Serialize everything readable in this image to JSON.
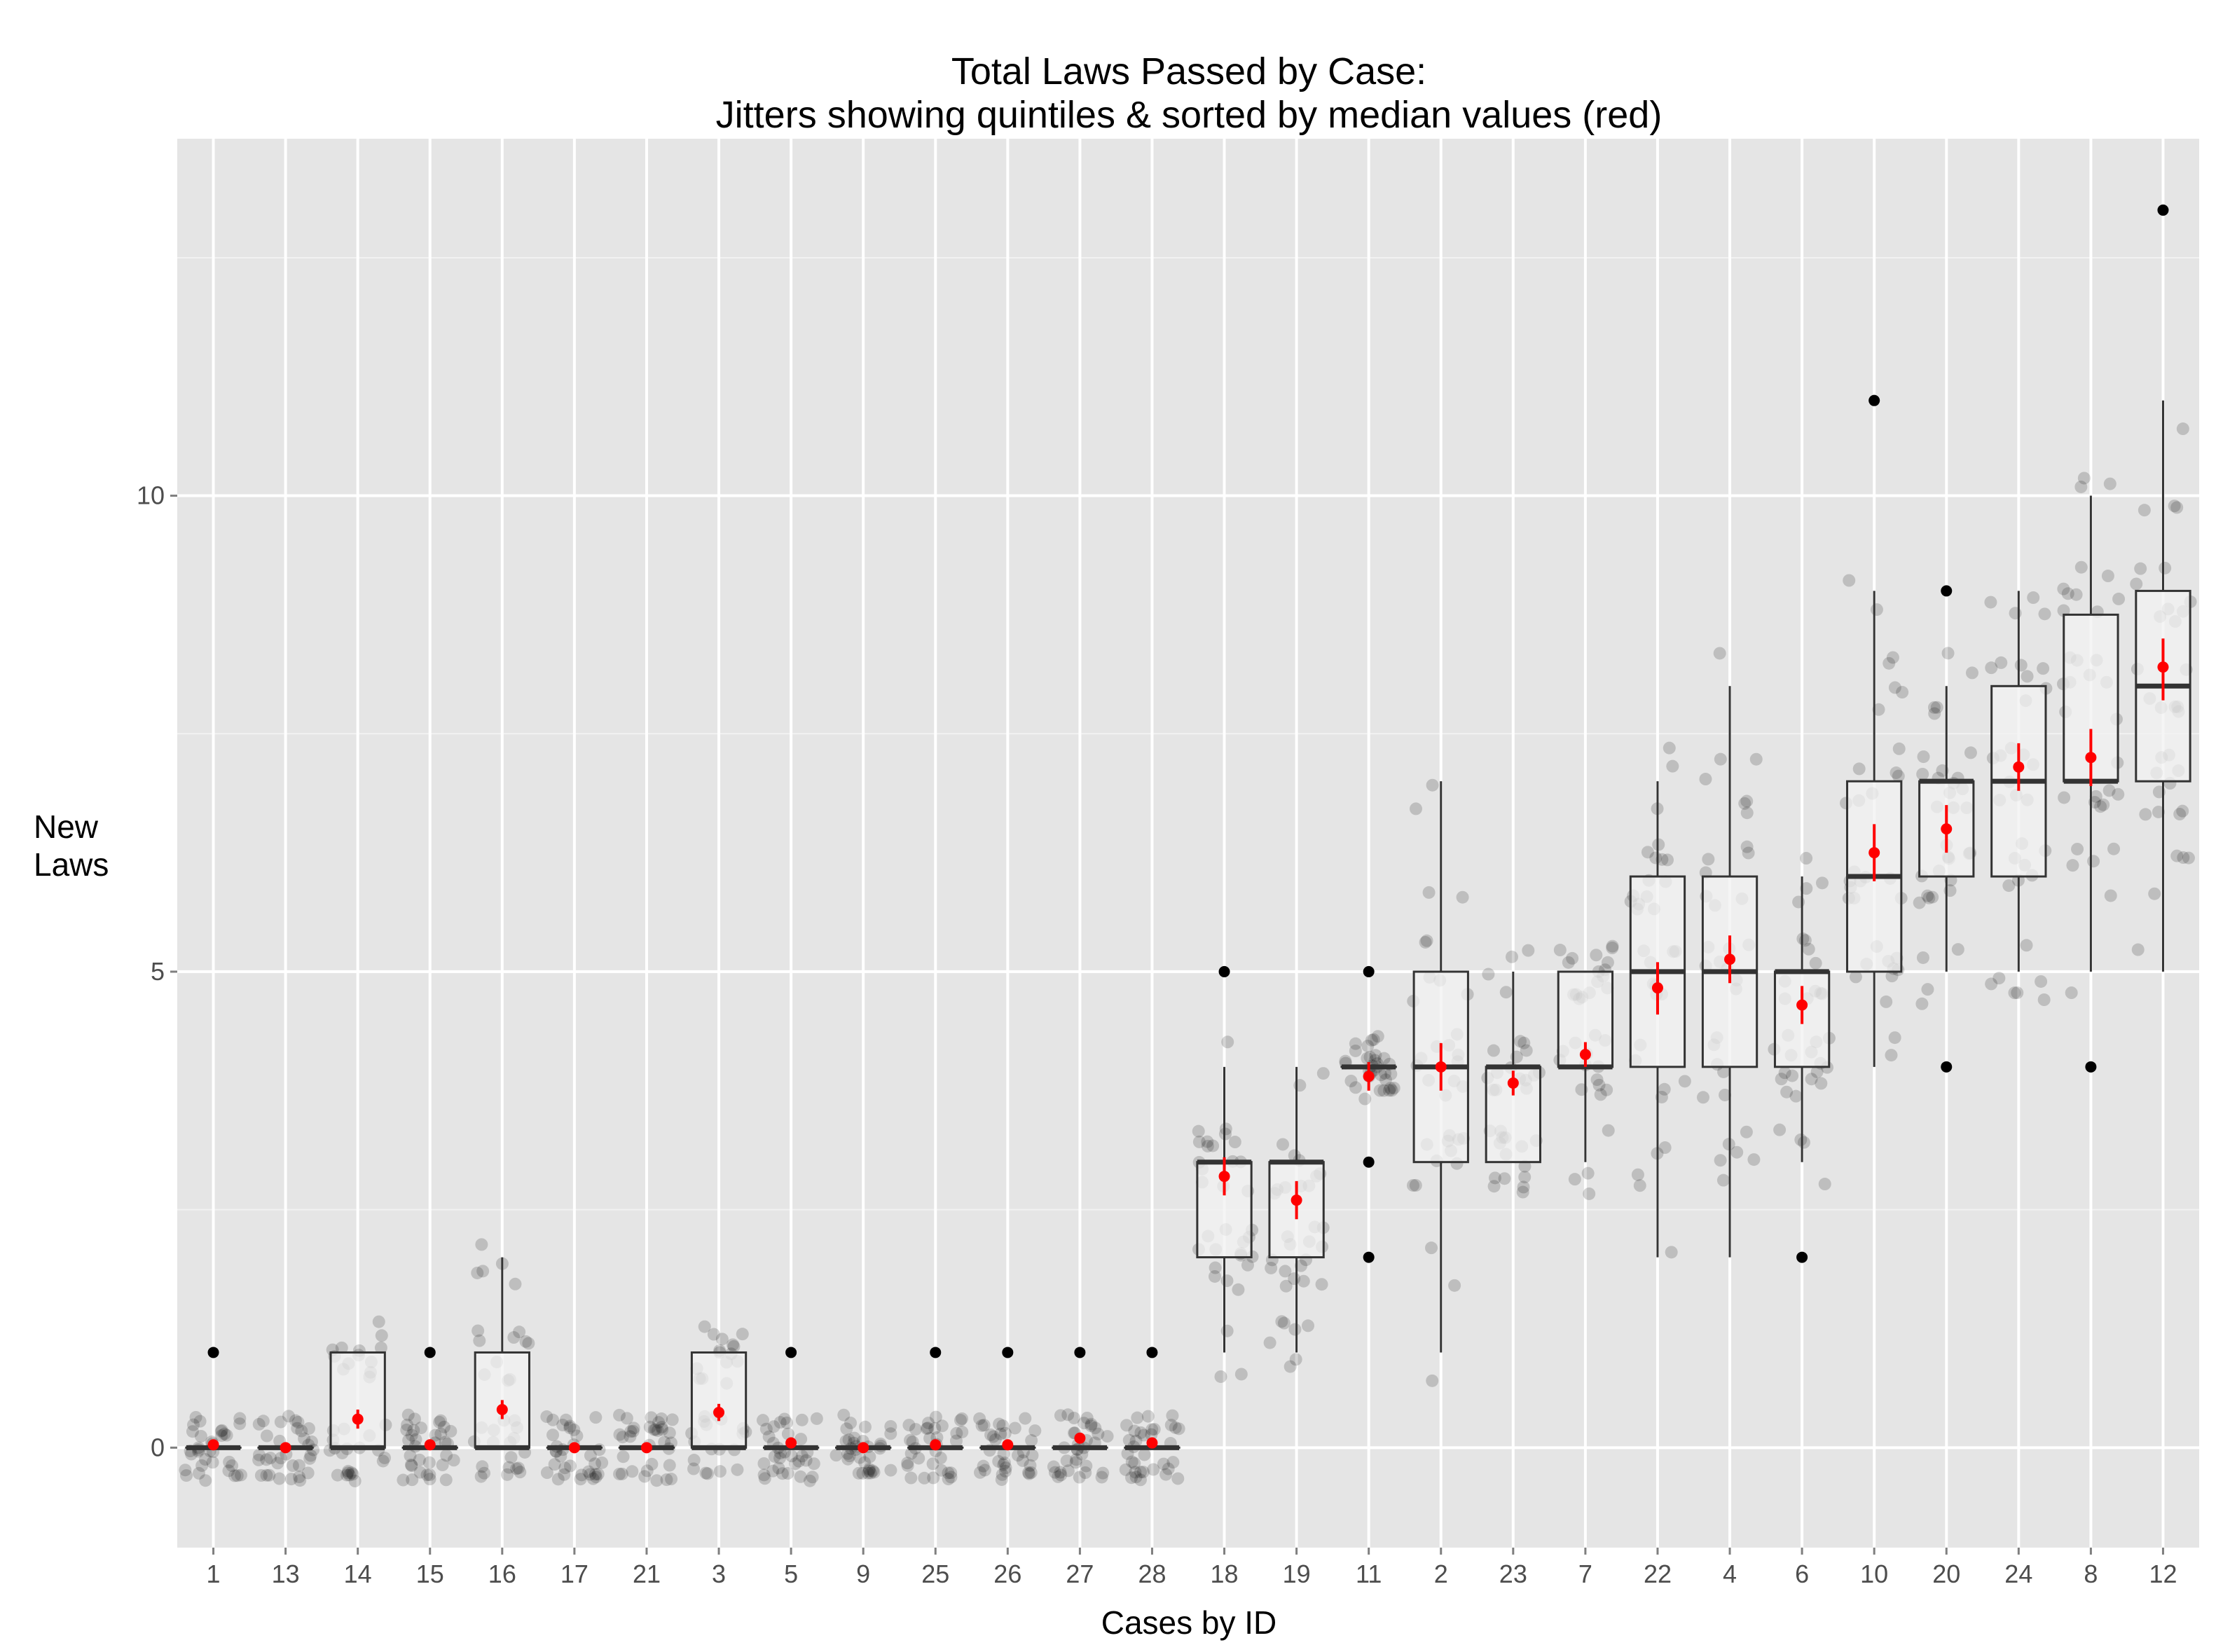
{
  "chart_data": {
    "type": "box",
    "title_line1": "Total Laws Passed by Case:",
    "title_line2": "Jitters showing quintiles & sorted by median values (red)",
    "xlabel": "Cases by ID",
    "ylabel_line1": "New",
    "ylabel_line2": "Laws",
    "ylim": [
      -1.05,
      13.75
    ],
    "yticks": [
      0,
      5,
      10
    ],
    "grid": true,
    "colors": {
      "panel": "#e5e5e5",
      "grid": "#ffffff",
      "box_fill": "#f2f2f2",
      "box_line": "#333333",
      "jitter": "#000000",
      "mean": "#ff0000",
      "outlier": "#000000"
    },
    "categories": [
      "1",
      "13",
      "14",
      "15",
      "16",
      "17",
      "21",
      "3",
      "5",
      "9",
      "25",
      "26",
      "27",
      "28",
      "18",
      "19",
      "11",
      "2",
      "23",
      "7",
      "22",
      "4",
      "6",
      "10",
      "20",
      "24",
      "8",
      "12"
    ],
    "boxes": [
      {
        "q1": 0,
        "median": 0,
        "q3": 0,
        "whisker_low": 0,
        "whisker_high": 0,
        "mean": 0.03,
        "ci": [
          0.0,
          0.06
        ],
        "outliers": [
          1
        ]
      },
      {
        "q1": 0,
        "median": 0,
        "q3": 0,
        "whisker_low": 0,
        "whisker_high": 0,
        "mean": 0,
        "ci": [
          0,
          0
        ],
        "outliers": []
      },
      {
        "q1": 0,
        "median": 0,
        "q3": 1,
        "whisker_low": 0,
        "whisker_high": 1,
        "mean": 0.3,
        "ci": [
          0.2,
          0.4
        ],
        "outliers": []
      },
      {
        "q1": 0,
        "median": 0,
        "q3": 0,
        "whisker_low": 0,
        "whisker_high": 0,
        "mean": 0.03,
        "ci": [
          0.0,
          0.06
        ],
        "outliers": [
          1
        ]
      },
      {
        "q1": 0,
        "median": 0,
        "q3": 1,
        "whisker_low": 0,
        "whisker_high": 2,
        "mean": 0.4,
        "ci": [
          0.3,
          0.5
        ],
        "outliers": []
      },
      {
        "q1": 0,
        "median": 0,
        "q3": 0,
        "whisker_low": 0,
        "whisker_high": 0,
        "mean": 0,
        "ci": [
          0,
          0
        ],
        "outliers": []
      },
      {
        "q1": 0,
        "median": 0,
        "q3": 0,
        "whisker_low": 0,
        "whisker_high": 0,
        "mean": 0,
        "ci": [
          0,
          0
        ],
        "outliers": []
      },
      {
        "q1": 0,
        "median": 0,
        "q3": 1,
        "whisker_low": 0,
        "whisker_high": 1,
        "mean": 0.37,
        "ci": [
          0.28,
          0.46
        ],
        "outliers": []
      },
      {
        "q1": 0,
        "median": 0,
        "q3": 0,
        "whisker_low": 0,
        "whisker_high": 0,
        "mean": 0.05,
        "ci": [
          0.0,
          0.1
        ],
        "outliers": [
          1
        ]
      },
      {
        "q1": 0,
        "median": 0,
        "q3": 0,
        "whisker_low": 0,
        "whisker_high": 0,
        "mean": 0,
        "ci": [
          0,
          0
        ],
        "outliers": []
      },
      {
        "q1": 0,
        "median": 0,
        "q3": 0,
        "whisker_low": 0,
        "whisker_high": 0,
        "mean": 0.03,
        "ci": [
          0.0,
          0.06
        ],
        "outliers": [
          1
        ]
      },
      {
        "q1": 0,
        "median": 0,
        "q3": 0,
        "whisker_low": 0,
        "whisker_high": 0,
        "mean": 0.03,
        "ci": [
          0.0,
          0.06
        ],
        "outliers": [
          1
        ]
      },
      {
        "q1": 0,
        "median": 0,
        "q3": 0,
        "whisker_low": 0,
        "whisker_high": 0,
        "mean": 0.1,
        "ci": [
          0.05,
          0.15
        ],
        "outliers": [
          1
        ]
      },
      {
        "q1": 0,
        "median": 0,
        "q3": 0,
        "whisker_low": 0,
        "whisker_high": 0,
        "mean": 0.05,
        "ci": [
          0.0,
          0.1
        ],
        "outliers": [
          1
        ]
      },
      {
        "q1": 2,
        "median": 3,
        "q3": 3,
        "whisker_low": 1,
        "whisker_high": 4,
        "mean": 2.85,
        "ci": [
          2.65,
          3.05
        ],
        "outliers": [
          5
        ]
      },
      {
        "q1": 2,
        "median": 3,
        "q3": 3,
        "whisker_low": 1,
        "whisker_high": 4,
        "mean": 2.6,
        "ci": [
          2.4,
          2.8
        ],
        "outliers": []
      },
      {
        "q1": 4,
        "median": 4,
        "q3": 4,
        "whisker_low": 4,
        "whisker_high": 4,
        "mean": 3.9,
        "ci": [
          3.75,
          4.05
        ],
        "outliers": [
          2,
          3,
          5
        ]
      },
      {
        "q1": 3,
        "median": 4,
        "q3": 5,
        "whisker_low": 1,
        "whisker_high": 7,
        "mean": 4.0,
        "ci": [
          3.75,
          4.25
        ],
        "outliers": []
      },
      {
        "q1": 3,
        "median": 4,
        "q3": 4,
        "whisker_low": 3,
        "whisker_high": 5,
        "mean": 3.83,
        "ci": [
          3.7,
          3.96
        ],
        "outliers": []
      },
      {
        "q1": 4,
        "median": 4,
        "q3": 5,
        "whisker_low": 3,
        "whisker_high": 5,
        "mean": 4.13,
        "ci": [
          4.0,
          4.26
        ],
        "outliers": []
      },
      {
        "q1": 4,
        "median": 5,
        "q3": 6,
        "whisker_low": 2,
        "whisker_high": 7,
        "mean": 4.83,
        "ci": [
          4.55,
          5.1
        ],
        "outliers": []
      },
      {
        "q1": 4,
        "median": 5,
        "q3": 6,
        "whisker_low": 2,
        "whisker_high": 8,
        "mean": 5.13,
        "ci": [
          4.88,
          5.38
        ],
        "outliers": []
      },
      {
        "q1": 4,
        "median": 5,
        "q3": 5,
        "whisker_low": 3,
        "whisker_high": 6,
        "mean": 4.65,
        "ci": [
          4.45,
          4.85
        ],
        "outliers": [
          2
        ]
      },
      {
        "q1": 5,
        "median": 6,
        "q3": 7,
        "whisker_low": 4,
        "whisker_high": 9,
        "mean": 6.25,
        "ci": [
          5.95,
          6.55
        ],
        "outliers": [
          11
        ]
      },
      {
        "q1": 6,
        "median": 7,
        "q3": 7,
        "whisker_low": 5,
        "whisker_high": 8,
        "mean": 6.5,
        "ci": [
          6.25,
          6.75
        ],
        "outliers": [
          4,
          9
        ]
      },
      {
        "q1": 6,
        "median": 7,
        "q3": 8,
        "whisker_low": 5,
        "whisker_high": 9,
        "mean": 7.15,
        "ci": [
          6.9,
          7.4
        ],
        "outliers": []
      },
      {
        "q1": 7,
        "median": 7,
        "q3": 8.75,
        "whisker_low": 5,
        "whisker_high": 10,
        "mean": 7.25,
        "ci": [
          6.95,
          7.55
        ],
        "outliers": [
          4
        ]
      },
      {
        "q1": 7,
        "median": 8,
        "q3": 9,
        "whisker_low": 5,
        "whisker_high": 11,
        "mean": 8.2,
        "ci": [
          7.85,
          8.5
        ],
        "outliers": [
          13
        ]
      }
    ]
  }
}
